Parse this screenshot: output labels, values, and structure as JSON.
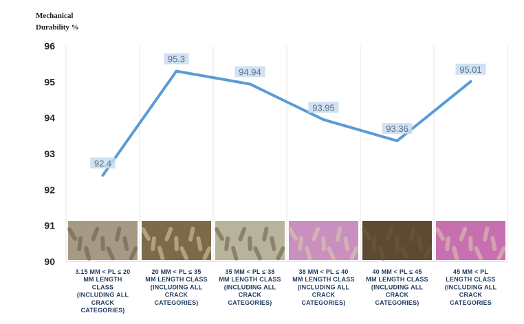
{
  "chart_data": {
    "type": "line",
    "ylabel_lines": [
      "Mechanical",
      "Durability %"
    ],
    "ylim": [
      90,
      96
    ],
    "yticks": [
      90,
      91,
      92,
      93,
      94,
      95,
      96
    ],
    "grid": "vertical category separators",
    "legend": "none",
    "categories": [
      [
        "3.15 MM < PL ≤ 20",
        "MM  LENGTH",
        "CLASS",
        "(INCLUDING ALL",
        "CRACK",
        "CATEGORIES)"
      ],
      [
        "20 MM < PL ≤ 35",
        "MM LENGTH CLASS",
        "(INCLUDING ALL",
        "CRACK",
        "CATEGORIES)"
      ],
      [
        "35 MM < PL ≤ 38",
        "MM LENGTH CLASS",
        "(INCLUDING ALL",
        "CRACK",
        "CATEGORIES)"
      ],
      [
        "38 MM < PL ≤ 40",
        "MM LENGTH CLASS",
        "(INCLUDING ALL",
        "CRACK",
        "CATEGORIES)"
      ],
      [
        "40 MM < PL ≤ 45",
        "MM LENGTH CLASS",
        "(INCLUDING ALL",
        "CRACK",
        "CATEGORIES)"
      ],
      [
        "45 MM < PL",
        "LENGTH CLASS",
        "(INCLUDING ALL",
        "CRACK",
        "CATEGORIES"
      ]
    ],
    "series": [
      {
        "values": [
          92.4,
          95.3,
          94.94,
          93.95,
          93.36,
          95.01
        ]
      }
    ],
    "data_labels": [
      "92.4",
      "95.3",
      "94.94",
      "93.95",
      "93.36",
      "95.01"
    ],
    "colors": {
      "line": "#5b9bd5",
      "label_bg": "#c9dcef",
      "label_text": "#5a6f8a",
      "photo_bg": [
        "#a69a86",
        "#7d6a4a",
        "#b7b39c",
        "#c98fbf",
        "#5d4a33",
        "#c86fb2"
      ]
    }
  }
}
